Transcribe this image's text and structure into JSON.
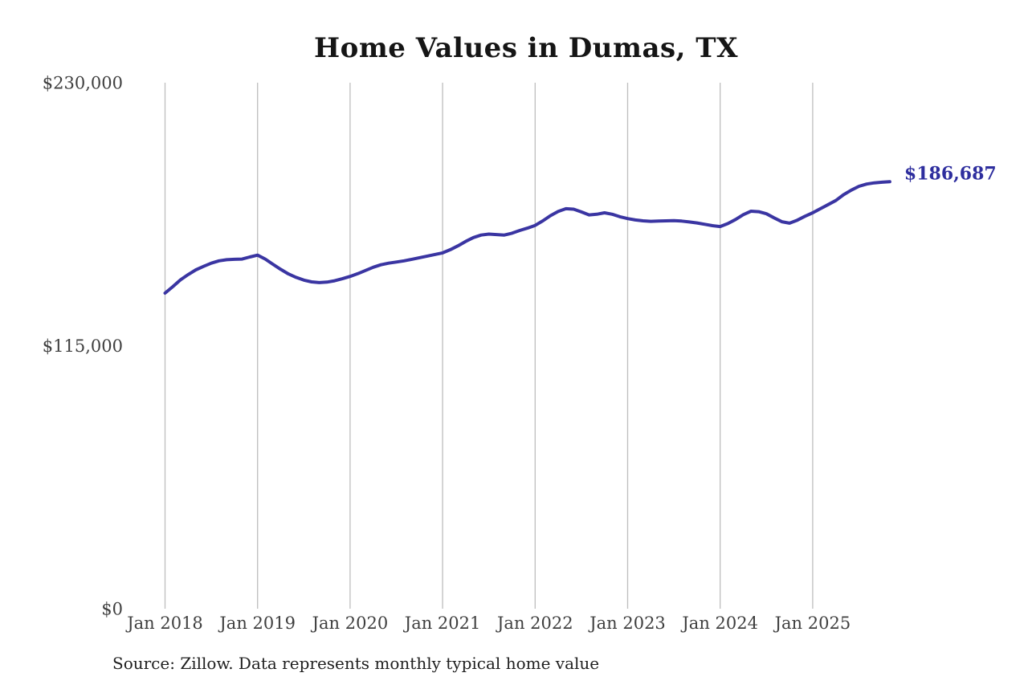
{
  "title": "Home Values in Dumas, TX",
  "source_note": "Source: Zillow. Data represents monthly typical home value",
  "annotation": {
    "label": "$186,687",
    "value": 186687
  },
  "colors": {
    "line": "#3a35a2",
    "annotation": "#2e2e9e",
    "gridline": "#bdbdbd",
    "tick_label": "#3f3f3f",
    "title": "#151515",
    "source": "#1f1f1f",
    "background": "#ffffff"
  },
  "chart_data": {
    "type": "line",
    "title": "Home Values in Dumas, TX",
    "xlabel": "",
    "ylabel": "",
    "x_unit": "month",
    "x_tick_labels": [
      "Jan 2018",
      "Jan 2019",
      "Jan 2020",
      "Jan 2021",
      "Jan 2022",
      "Jan 2023",
      "Jan 2024",
      "Jan 2025"
    ],
    "y_ticks": [
      {
        "value": 0,
        "label": "$0"
      },
      {
        "value": 115000,
        "label": "$115,000"
      },
      {
        "value": 230000,
        "label": "$230,000"
      }
    ],
    "ylim": [
      0,
      230000
    ],
    "grid": "vertical-only",
    "legend": "none",
    "final_value": 186687,
    "final_value_label": "$186,687",
    "series": [
      {
        "name": "Monthly typical home value",
        "start_month": "2018-01",
        "end_month": "2025-11",
        "values": [
          138000,
          140800,
          143800,
          146100,
          148200,
          149700,
          151100,
          152100,
          152600,
          152800,
          152900,
          153800,
          154600,
          152900,
          150600,
          148400,
          146400,
          144900,
          143700,
          142900,
          142600,
          142800,
          143400,
          144300,
          145300,
          146500,
          147900,
          149300,
          150400,
          151100,
          151600,
          152100,
          152800,
          153500,
          154200,
          154900,
          155600,
          157000,
          158700,
          160600,
          162300,
          163400,
          163800,
          163600,
          163400,
          164200,
          165400,
          166400,
          167600,
          169600,
          171900,
          173700,
          174900,
          174700,
          173500,
          172200,
          172500,
          173100,
          172500,
          171400,
          170600,
          170000,
          169600,
          169400,
          169500,
          169600,
          169700,
          169500,
          169100,
          168700,
          168100,
          167500,
          167100,
          168400,
          170200,
          172300,
          173800,
          173600,
          172700,
          170900,
          169200,
          168600,
          169900,
          171600,
          173100,
          174900,
          176700,
          178500,
          181000,
          183000,
          184700,
          185700,
          186200,
          186500,
          186687
        ]
      }
    ]
  }
}
